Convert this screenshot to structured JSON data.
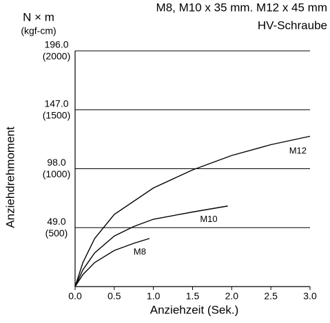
{
  "chart_data": {
    "type": "line",
    "title": "M8, M10 x 35 mm. M12 x 45 mm",
    "subtitle": "HV-Schraube",
    "y_unit": "N × m",
    "y2_unit": "(kgf-cm)",
    "ylabel": "Anziehdrehmoment",
    "xlabel": "Anziehzeit (Sek.)",
    "xlim": [
      0,
      3
    ],
    "xticks": [
      {
        "value": 0,
        "label": "0.0"
      },
      {
        "value": 0.5,
        "label": "0.5"
      },
      {
        "value": 1,
        "label": "1.0"
      },
      {
        "value": 1.5,
        "label": "1.5"
      },
      {
        "value": 2,
        "label": "2.0"
      },
      {
        "value": 2.5,
        "label": "2.5"
      },
      {
        "value": 3,
        "label": "3.0"
      }
    ],
    "ylim": [
      0,
      196
    ],
    "yticks": [
      {
        "value": 49,
        "label": "49.0"
      },
      {
        "value": 98,
        "label": "98.0"
      },
      {
        "value": 147,
        "label": "147.0"
      },
      {
        "value": 196,
        "label": "196.0"
      }
    ],
    "y2lim": [
      0,
      2000
    ],
    "y2ticks": [
      {
        "value": 500,
        "label": "(500)"
      },
      {
        "value": 1000,
        "label": "(1000)"
      },
      {
        "value": 1500,
        "label": "(1500)"
      },
      {
        "value": 2000,
        "label": "(2000)"
      }
    ],
    "grid": true,
    "series": [
      {
        "name": "M12",
        "color": "#000000",
        "x": [
          0,
          0.1,
          0.25,
          0.5,
          1,
          1.5,
          2,
          2.5,
          3
        ],
        "values": [
          0,
          20,
          40,
          60,
          82,
          97,
          109,
          118,
          125
        ]
      },
      {
        "name": "M10",
        "color": "#000000",
        "x": [
          0,
          0.1,
          0.25,
          0.5,
          0.75,
          1,
          1.5,
          1.95
        ],
        "values": [
          0,
          14,
          28,
          42,
          50,
          56,
          62,
          67
        ]
      },
      {
        "name": "M8",
        "color": "#000000",
        "x": [
          0,
          0.1,
          0.25,
          0.5,
          0.75,
          0.95
        ],
        "values": [
          0,
          10,
          20,
          30,
          36,
          40
        ]
      }
    ]
  }
}
